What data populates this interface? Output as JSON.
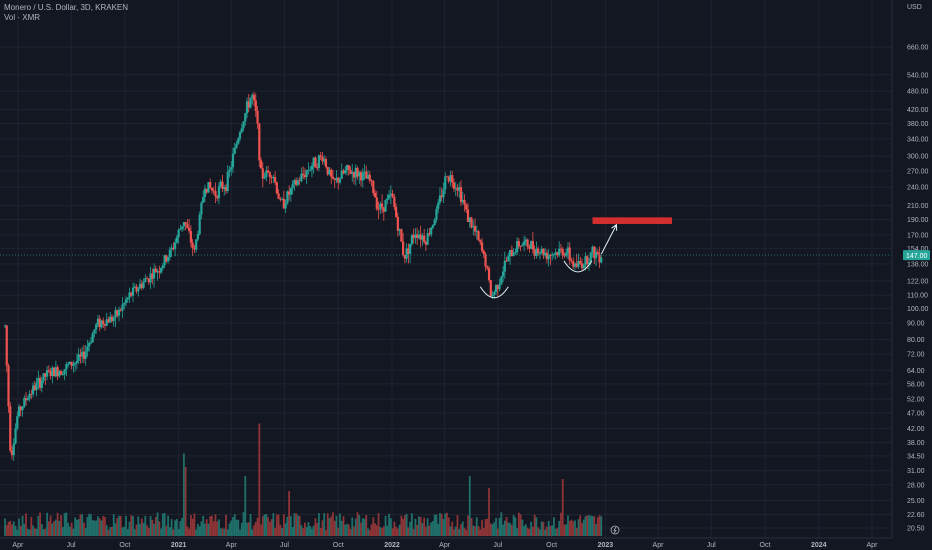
{
  "header": {
    "symbol_line": "Monero / U.S. Dollar, 3D, KRAKEN",
    "volume_line": "Vol · XMR"
  },
  "colors": {
    "background": "#131722",
    "up": "#26a69a",
    "down": "#ef5350",
    "grid": "#1f2330",
    "axis_text": "#b2b5be",
    "price_line": "#26a69a",
    "target_box": "#d32f2f",
    "drawing": "#e0f2f1",
    "vol_up": "#1f6f6a",
    "vol_down": "#8c3436"
  },
  "chart_data": {
    "type": "candlestick",
    "title": "Monero / U.S. Dollar, 3D, KRAKEN",
    "y_scale": "log",
    "y_unit_label": "USD",
    "ylim": [
      19,
      780
    ],
    "grid": true,
    "current_price": "147.00",
    "y_ticks": [
      "660.00",
      "540.00",
      "480.00",
      "420.00",
      "380.00",
      "340.00",
      "300.00",
      "270.00",
      "240.00",
      "210.00",
      "190.00",
      "170.00",
      "154.00",
      "138.00",
      "122.00",
      "110.00",
      "100.00",
      "90.00",
      "80.00",
      "72.00",
      "64.00",
      "58.00",
      "52.00",
      "47.00",
      "42.00",
      "38.00",
      "34.50",
      "31.00",
      "28.00",
      "25.00",
      "22.60",
      "20.50"
    ],
    "x_ticks": [
      "Apr",
      "Jul",
      "Oct",
      "2021",
      "Apr",
      "Jul",
      "Oct",
      "2022",
      "Apr",
      "Jul",
      "Oct",
      "2023",
      "Apr",
      "Jul",
      "Oct",
      "2024",
      "Apr"
    ],
    "price_path": [
      [
        "2020-03-10",
        88
      ],
      [
        "2020-03-20",
        34
      ],
      [
        "2020-04-01",
        47
      ],
      [
        "2020-04-20",
        54
      ],
      [
        "2020-05-20",
        62
      ],
      [
        "2020-06-20",
        65
      ],
      [
        "2020-07-20",
        70
      ],
      [
        "2020-08-15",
        90
      ],
      [
        "2020-09-15",
        94
      ],
      [
        "2020-10-10",
        110
      ],
      [
        "2020-11-10",
        125
      ],
      [
        "2020-12-01",
        135
      ],
      [
        "2020-12-20",
        152
      ],
      [
        "2021-01-10",
        190
      ],
      [
        "2021-01-28",
        150
      ],
      [
        "2021-02-15",
        245
      ],
      [
        "2021-03-05",
        230
      ],
      [
        "2021-03-25",
        250
      ],
      [
        "2021-04-15",
        360
      ],
      [
        "2021-05-06",
        470
      ],
      [
        "2021-05-15",
        390
      ],
      [
        "2021-05-22",
        260
      ],
      [
        "2021-06-10",
        270
      ],
      [
        "2021-06-25",
        210
      ],
      [
        "2021-07-20",
        245
      ],
      [
        "2021-08-15",
        280
      ],
      [
        "2021-09-05",
        300
      ],
      [
        "2021-09-22",
        245
      ],
      [
        "2021-10-15",
        270
      ],
      [
        "2021-11-05",
        265
      ],
      [
        "2021-11-25",
        250
      ],
      [
        "2021-12-10",
        205
      ],
      [
        "2022-01-01",
        225
      ],
      [
        "2022-01-22",
        145
      ],
      [
        "2022-02-10",
        175
      ],
      [
        "2022-03-01",
        165
      ],
      [
        "2022-03-20",
        205
      ],
      [
        "2022-04-05",
        265
      ],
      [
        "2022-04-25",
        240
      ],
      [
        "2022-05-10",
        195
      ],
      [
        "2022-05-25",
        170
      ],
      [
        "2022-06-10",
        140
      ],
      [
        "2022-06-20",
        108
      ],
      [
        "2022-07-01",
        120
      ],
      [
        "2022-07-15",
        140
      ],
      [
        "2022-08-05",
        160
      ],
      [
        "2022-08-25",
        158
      ],
      [
        "2022-09-10",
        152
      ],
      [
        "2022-09-25",
        148
      ],
      [
        "2022-10-10",
        150
      ],
      [
        "2022-10-25",
        152
      ],
      [
        "2022-11-10",
        135
      ],
      [
        "2022-11-25",
        140
      ],
      [
        "2022-12-10",
        150
      ],
      [
        "2022-12-25",
        147
      ]
    ],
    "volume_spikes": [
      [
        "2021-01-10",
        0.55
      ],
      [
        "2021-01-13",
        0.46
      ],
      [
        "2021-05-18",
        0.75
      ],
      [
        "2021-04-26",
        0.4
      ],
      [
        "2021-07-10",
        0.3
      ],
      [
        "2022-05-15",
        0.4
      ],
      [
        "2022-06-15",
        0.32
      ],
      [
        "2022-10-20",
        0.38
      ]
    ],
    "annotations": [
      {
        "type": "rectangle",
        "from": [
          "2022-12-10",
          193
        ],
        "to": [
          "2023-04-25",
          184
        ],
        "color": "#d32f2f"
      },
      {
        "type": "arrow",
        "from": [
          "2022-12-25",
          148
        ],
        "to": [
          "2023-01-20",
          183
        ]
      },
      {
        "type": "arc",
        "center": [
          "2022-06-25",
          112
        ],
        "note": "bottom"
      },
      {
        "type": "arc",
        "center": [
          "2022-11-15",
          135
        ],
        "note": "bottom"
      }
    ]
  }
}
